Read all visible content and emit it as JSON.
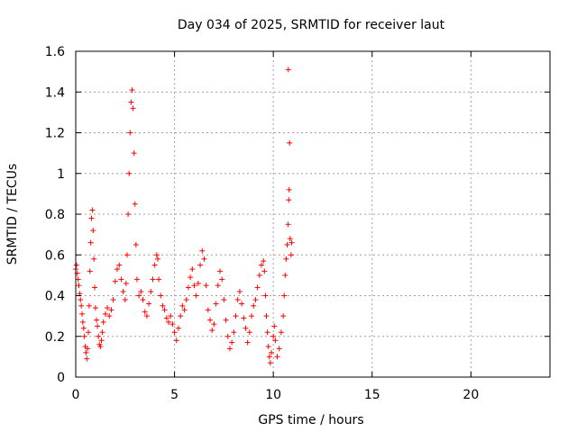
{
  "chart_data": {
    "type": "scatter",
    "title": "Day 034 of 2025, SRMTID for receiver laut",
    "xlabel": "GPS time / hours",
    "ylabel": "SRMTID / TECUs",
    "xlim": [
      0,
      24
    ],
    "ylim": [
      0,
      1.6
    ],
    "xticks": [
      0,
      5,
      10,
      15,
      20
    ],
    "xtick_labels": [
      "0",
      "5",
      "10",
      "15",
      "20"
    ],
    "yticks": [
      0,
      0.2,
      0.4,
      0.6,
      0.8,
      1.0,
      1.2,
      1.4,
      1.6
    ],
    "ytick_labels": [
      "0",
      "0.2",
      "0.4",
      "0.6",
      "0.8",
      "1",
      "1.2",
      "1.4",
      "1.6"
    ],
    "grid": true,
    "marker": "+",
    "color": "#ff0000",
    "series": [
      {
        "name": "SRMTID",
        "points": [
          [
            0.0,
            0.53
          ],
          [
            0.04,
            0.55
          ],
          [
            0.08,
            0.51
          ],
          [
            0.12,
            0.48
          ],
          [
            0.16,
            0.45
          ],
          [
            0.2,
            0.41
          ],
          [
            0.24,
            0.38
          ],
          [
            0.28,
            0.35
          ],
          [
            0.32,
            0.31
          ],
          [
            0.36,
            0.27
          ],
          [
            0.4,
            0.24
          ],
          [
            0.44,
            0.2
          ],
          [
            0.48,
            0.15
          ],
          [
            0.52,
            0.12
          ],
          [
            0.56,
            0.09
          ],
          [
            0.6,
            0.14
          ],
          [
            0.64,
            0.22
          ],
          [
            0.68,
            0.35
          ],
          [
            0.72,
            0.52
          ],
          [
            0.76,
            0.66
          ],
          [
            0.8,
            0.78
          ],
          [
            0.84,
            0.82
          ],
          [
            0.88,
            0.72
          ],
          [
            0.92,
            0.58
          ],
          [
            0.96,
            0.44
          ],
          [
            1.0,
            0.34
          ],
          [
            1.05,
            0.28
          ],
          [
            1.1,
            0.25
          ],
          [
            1.15,
            0.2
          ],
          [
            1.2,
            0.16
          ],
          [
            1.25,
            0.15
          ],
          [
            1.3,
            0.18
          ],
          [
            1.35,
            0.22
          ],
          [
            1.4,
            0.27
          ],
          [
            1.5,
            0.31
          ],
          [
            1.6,
            0.34
          ],
          [
            1.7,
            0.3
          ],
          [
            1.8,
            0.33
          ],
          [
            1.9,
            0.38
          ],
          [
            2.0,
            0.47
          ],
          [
            2.1,
            0.53
          ],
          [
            2.2,
            0.55
          ],
          [
            2.3,
            0.48
          ],
          [
            2.4,
            0.42
          ],
          [
            2.5,
            0.38
          ],
          [
            2.55,
            0.46
          ],
          [
            2.6,
            0.6
          ],
          [
            2.65,
            0.8
          ],
          [
            2.7,
            1.0
          ],
          [
            2.75,
            1.2
          ],
          [
            2.8,
            1.35
          ],
          [
            2.85,
            1.41
          ],
          [
            2.9,
            1.32
          ],
          [
            2.95,
            1.1
          ],
          [
            3.0,
            0.85
          ],
          [
            3.05,
            0.65
          ],
          [
            3.1,
            0.48
          ],
          [
            3.2,
            0.4
          ],
          [
            3.3,
            0.42
          ],
          [
            3.4,
            0.38
          ],
          [
            3.5,
            0.32
          ],
          [
            3.6,
            0.3
          ],
          [
            3.7,
            0.36
          ],
          [
            3.8,
            0.42
          ],
          [
            3.9,
            0.48
          ],
          [
            4.0,
            0.55
          ],
          [
            4.1,
            0.6
          ],
          [
            4.15,
            0.58
          ],
          [
            4.2,
            0.48
          ],
          [
            4.3,
            0.4
          ],
          [
            4.4,
            0.35
          ],
          [
            4.5,
            0.33
          ],
          [
            4.6,
            0.29
          ],
          [
            4.7,
            0.27
          ],
          [
            4.8,
            0.3
          ],
          [
            4.9,
            0.26
          ],
          [
            5.0,
            0.22
          ],
          [
            5.1,
            0.18
          ],
          [
            5.2,
            0.24
          ],
          [
            5.3,
            0.3
          ],
          [
            5.4,
            0.35
          ],
          [
            5.5,
            0.33
          ],
          [
            5.6,
            0.38
          ],
          [
            5.7,
            0.44
          ],
          [
            5.8,
            0.49
          ],
          [
            5.9,
            0.53
          ],
          [
            6.0,
            0.45
          ],
          [
            6.1,
            0.4
          ],
          [
            6.2,
            0.46
          ],
          [
            6.3,
            0.55
          ],
          [
            6.4,
            0.62
          ],
          [
            6.5,
            0.58
          ],
          [
            6.6,
            0.45
          ],
          [
            6.7,
            0.33
          ],
          [
            6.8,
            0.28
          ],
          [
            6.9,
            0.23
          ],
          [
            7.0,
            0.26
          ],
          [
            7.1,
            0.36
          ],
          [
            7.2,
            0.45
          ],
          [
            7.3,
            0.52
          ],
          [
            7.4,
            0.48
          ],
          [
            7.5,
            0.38
          ],
          [
            7.6,
            0.28
          ],
          [
            7.7,
            0.2
          ],
          [
            7.8,
            0.14
          ],
          [
            7.9,
            0.17
          ],
          [
            8.0,
            0.22
          ],
          [
            8.1,
            0.3
          ],
          [
            8.2,
            0.38
          ],
          [
            8.3,
            0.42
          ],
          [
            8.4,
            0.36
          ],
          [
            8.5,
            0.29
          ],
          [
            8.6,
            0.24
          ],
          [
            8.7,
            0.17
          ],
          [
            8.8,
            0.22
          ],
          [
            8.9,
            0.3
          ],
          [
            9.0,
            0.35
          ],
          [
            9.1,
            0.38
          ],
          [
            9.2,
            0.44
          ],
          [
            9.3,
            0.5
          ],
          [
            9.4,
            0.55
          ],
          [
            9.5,
            0.57
          ],
          [
            9.55,
            0.52
          ],
          [
            9.6,
            0.4
          ],
          [
            9.65,
            0.3
          ],
          [
            9.7,
            0.22
          ],
          [
            9.75,
            0.15
          ],
          [
            9.8,
            0.1
          ],
          [
            9.85,
            0.07
          ],
          [
            9.9,
            0.12
          ],
          [
            10.0,
            0.2
          ],
          [
            10.05,
            0.25
          ],
          [
            10.1,
            0.18
          ],
          [
            10.2,
            0.1
          ],
          [
            10.3,
            0.14
          ],
          [
            10.4,
            0.22
          ],
          [
            10.5,
            0.3
          ],
          [
            10.55,
            0.4
          ],
          [
            10.6,
            0.5
          ],
          [
            10.65,
            0.58
          ],
          [
            10.7,
            0.65
          ],
          [
            10.75,
            0.75
          ],
          [
            10.78,
            0.87
          ],
          [
            10.8,
            0.92
          ],
          [
            10.82,
            1.15
          ],
          [
            10.85,
            0.68
          ],
          [
            10.9,
            0.6
          ],
          [
            10.93,
            0.66
          ],
          [
            10.76,
            1.51
          ]
        ]
      }
    ]
  }
}
